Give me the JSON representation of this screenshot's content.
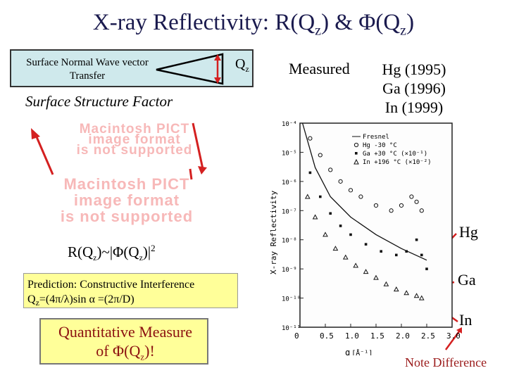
{
  "title": {
    "pre": "X-ray Reflectivity: R(Q",
    "sub1": "z",
    "mid": ") & Φ(Q",
    "sub2": "z",
    "post": ")"
  },
  "wave_box": {
    "label": "Surface Normal Wave vector Transfer",
    "qz_main": "Q",
    "qz_sub": "z"
  },
  "surface_structure_factor": "Surface Structure Factor",
  "pict_placeholder": [
    "Macintosh PICT",
    "image format",
    "is not supported"
  ],
  "measured_label": "Measured",
  "elements": [
    "Hg (1995)",
    "Ga (1996)",
    "In (1999)"
  ],
  "relation": {
    "a": "R(Q",
    "a_sub": "z",
    "b": ")~|Φ(Q",
    "b_sub": "z",
    "c": ")|",
    "sup": "2"
  },
  "prediction": {
    "line1": "Prediction: Constructive Interference",
    "q": "Q",
    "q_sub": "z",
    "line2": "=(4π/λ)sin α =(2π/D)"
  },
  "quantitative": {
    "line1": "Quantitative Measure",
    "line2_a": "of  Φ(Q",
    "line2_sub": "z",
    "line2_b": ")!"
  },
  "curve_labels": {
    "hg": "Hg",
    "ga": "Ga",
    "in": "In"
  },
  "note": "Note Difference",
  "colors": {
    "title": "#1a1a4e",
    "wave_box": "#cfe9ec",
    "yellow_box": "#ffff99",
    "quant_text": "#8b1010",
    "arrow": "#d42020",
    "pict": "#f7b8b8"
  },
  "chart_data": {
    "type": "scatter",
    "ylabel": "X-ray Reflectivity",
    "xlabel": "q",
    "x_unit": "[Å⁻¹]",
    "y_scale": "log",
    "xlim": [
      0,
      3.0
    ],
    "ylim": [
      1e-11,
      0.0001
    ],
    "x_ticks": [
      "0",
      "0.5",
      "1.0",
      "1.5",
      "2.0",
      "2.5",
      "3.0"
    ],
    "y_ticks": [
      "10⁻⁴",
      "10⁻⁵",
      "10⁻⁶",
      "10⁻⁷",
      "10⁻⁸",
      "10⁻⁹",
      "10⁻¹⁰",
      "10⁻¹¹"
    ],
    "legend": {
      "position": "top-right",
      "entries": [
        "Fresnel",
        "Hg   -30 °C",
        "Ga   +30 °C (×10⁻¹)",
        "In  +196 °C (×10⁻²)"
      ]
    },
    "series": [
      {
        "name": "Fresnel",
        "x": [
          0.05,
          0.3,
          0.6,
          1.0,
          1.5,
          2.0,
          2.5
        ],
        "y": [
          0.0001,
          3e-06,
          3e-07,
          6e-08,
          1.5e-08,
          5e-09,
          2e-09
        ]
      },
      {
        "name": "Hg",
        "x": [
          0.2,
          0.4,
          0.6,
          0.8,
          1.0,
          1.2,
          1.5,
          1.8,
          2.0,
          2.2,
          2.3,
          2.4
        ],
        "y": [
          3e-05,
          8e-06,
          2.5e-06,
          1e-06,
          5e-07,
          3e-07,
          1.5e-07,
          1e-07,
          1.5e-07,
          3e-07,
          2e-07,
          1e-07
        ]
      },
      {
        "name": "Ga",
        "x": [
          0.2,
          0.4,
          0.6,
          0.8,
          1.0,
          1.3,
          1.6,
          1.9,
          2.1,
          2.3,
          2.4,
          2.5
        ],
        "y": [
          2e-06,
          3e-07,
          8e-08,
          3e-08,
          1.5e-08,
          7e-09,
          4e-09,
          3e-09,
          4e-09,
          1e-08,
          3e-09,
          1e-09
        ]
      },
      {
        "name": "In",
        "x": [
          0.15,
          0.3,
          0.5,
          0.7,
          0.9,
          1.1,
          1.3,
          1.5,
          1.7,
          1.9,
          2.1,
          2.3,
          2.4
        ],
        "y": [
          3e-07,
          6e-08,
          1.5e-08,
          5e-09,
          2.5e-09,
          1.3e-09,
          8e-10,
          5e-10,
          3e-10,
          2e-10,
          1.5e-10,
          1.2e-10,
          1e-10
        ]
      }
    ]
  }
}
